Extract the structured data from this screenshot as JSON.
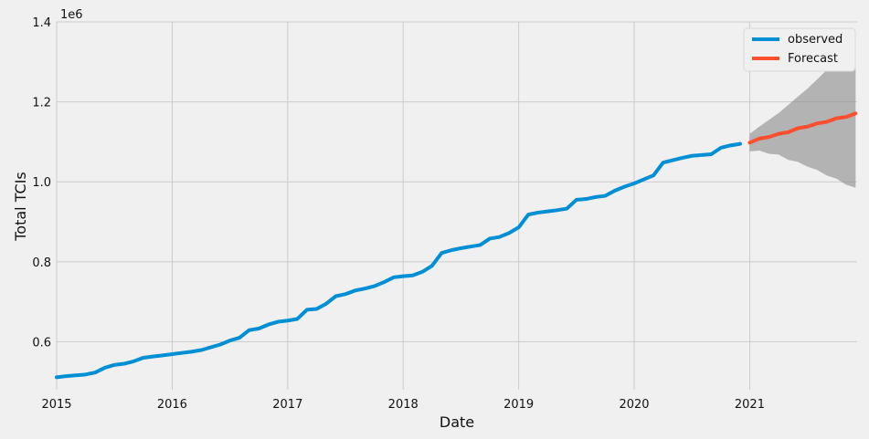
{
  "chart_data": {
    "type": "line",
    "xlabel": "Date",
    "ylabel": "Total TCIs",
    "y_scale_label": "1e6",
    "xlim": [
      2015.0,
      2021.93
    ],
    "ylim": [
      480000,
      1400000
    ],
    "grid": true,
    "legend_position": "top-right",
    "x_ticks": [
      {
        "value": 2015,
        "label": "2015"
      },
      {
        "value": 2016,
        "label": "2016"
      },
      {
        "value": 2017,
        "label": "2017"
      },
      {
        "value": 2018,
        "label": "2018"
      },
      {
        "value": 2019,
        "label": "2019"
      },
      {
        "value": 2020,
        "label": "2020"
      },
      {
        "value": 2021,
        "label": "2021"
      }
    ],
    "y_ticks": [
      {
        "value": 600000,
        "label": "0.6"
      },
      {
        "value": 800000,
        "label": "0.8"
      },
      {
        "value": 1000000,
        "label": "1.0"
      },
      {
        "value": 1200000,
        "label": "1.2"
      },
      {
        "value": 1400000,
        "label": "1.4"
      }
    ],
    "series": [
      {
        "name": "observed",
        "color": "#008fd5",
        "x": [
          2015.0,
          2015.083,
          2015.167,
          2015.25,
          2015.333,
          2015.417,
          2015.5,
          2015.583,
          2015.667,
          2015.75,
          2015.833,
          2015.917,
          2016.0,
          2016.083,
          2016.167,
          2016.25,
          2016.333,
          2016.417,
          2016.5,
          2016.583,
          2016.667,
          2016.75,
          2016.833,
          2016.917,
          2017.0,
          2017.083,
          2017.167,
          2017.25,
          2017.333,
          2017.417,
          2017.5,
          2017.583,
          2017.667,
          2017.75,
          2017.833,
          2017.917,
          2018.0,
          2018.083,
          2018.167,
          2018.25,
          2018.333,
          2018.417,
          2018.5,
          2018.583,
          2018.667,
          2018.75,
          2018.833,
          2018.917,
          2019.0,
          2019.083,
          2019.167,
          2019.25,
          2019.333,
          2019.417,
          2019.5,
          2019.583,
          2019.667,
          2019.75,
          2019.833,
          2019.917,
          2020.0,
          2020.083,
          2020.167,
          2020.25,
          2020.333,
          2020.417,
          2020.5,
          2020.583,
          2020.667,
          2020.75,
          2020.833,
          2020.917
        ],
        "y": [
          511000,
          514000,
          516000,
          518000,
          523000,
          535000,
          542000,
          545000,
          551000,
          560000,
          563000,
          566000,
          569000,
          572000,
          575000,
          579000,
          586000,
          593000,
          603000,
          610000,
          629000,
          633000,
          643000,
          650000,
          653000,
          657000,
          680000,
          682000,
          695000,
          714000,
          719000,
          728000,
          733000,
          739000,
          749000,
          761000,
          764000,
          766000,
          775000,
          790000,
          822000,
          829000,
          834000,
          838000,
          842000,
          858000,
          862000,
          872000,
          886000,
          918000,
          923000,
          926000,
          929000,
          933000,
          955000,
          957000,
          962000,
          965000,
          978000,
          988000,
          996000,
          1006000,
          1016000,
          1048000,
          1054000,
          1060000,
          1065000,
          1067000,
          1069000,
          1085000,
          1091000,
          1095000
        ]
      },
      {
        "name": "Forecast",
        "color": "#fc4f30",
        "x": [
          2021.0,
          2021.083,
          2021.167,
          2021.25,
          2021.333,
          2021.417,
          2021.5,
          2021.583,
          2021.667,
          2021.75,
          2021.833,
          2021.917
        ],
        "y": [
          1098000,
          1108000,
          1112000,
          1120000,
          1124000,
          1134000,
          1138000,
          1146000,
          1150000,
          1159000,
          1162000,
          1171000
        ],
        "ci_lower": [
          1076000,
          1078000,
          1070000,
          1068000,
          1055000,
          1050000,
          1038000,
          1030000,
          1016000,
          1008000,
          993000,
          985000
        ],
        "ci_upper": [
          1120000,
          1138000,
          1155000,
          1172000,
          1192000,
          1213000,
          1233000,
          1256000,
          1280000,
          1305000,
          1330000,
          1355000
        ],
        "ci_color": "#8a8a8a"
      }
    ]
  }
}
